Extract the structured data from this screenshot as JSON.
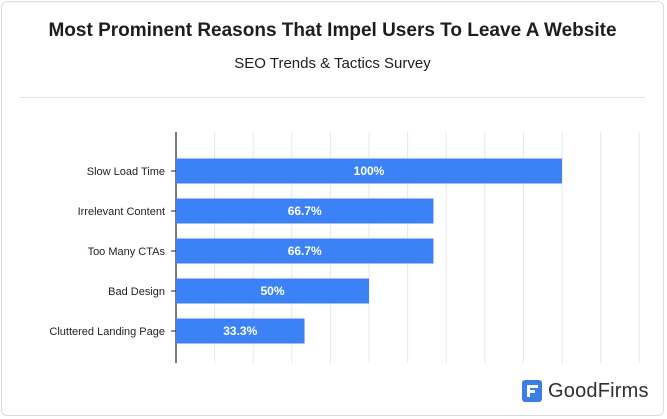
{
  "header": {
    "title": "Most Prominent Reasons That Impel Users To Leave A Website",
    "subtitle": "SEO Trends & Tactics Survey"
  },
  "brand": {
    "name": "GoodFirms",
    "icon": "goodfirms-logo-icon",
    "color": "#3b7fe6"
  },
  "chart_data": {
    "type": "bar",
    "orientation": "horizontal",
    "title": "Most Prominent Reasons That Impel Users To Leave A Website",
    "subtitle": "SEO Trends & Tactics Survey",
    "categories": [
      "Slow Load Time",
      "Irrelevant Content",
      "Too Many CTAs",
      "Bad Design",
      "Cluttered Landing Page"
    ],
    "values": [
      100,
      66.7,
      66.7,
      50,
      33.3
    ],
    "data_labels": [
      "100%",
      "66.7%",
      "66.7%",
      "50%",
      "33.3%"
    ],
    "xlim": [
      0,
      140
    ],
    "grid": true,
    "bar_color": "#3b82f6",
    "xlabel": "",
    "ylabel": ""
  }
}
